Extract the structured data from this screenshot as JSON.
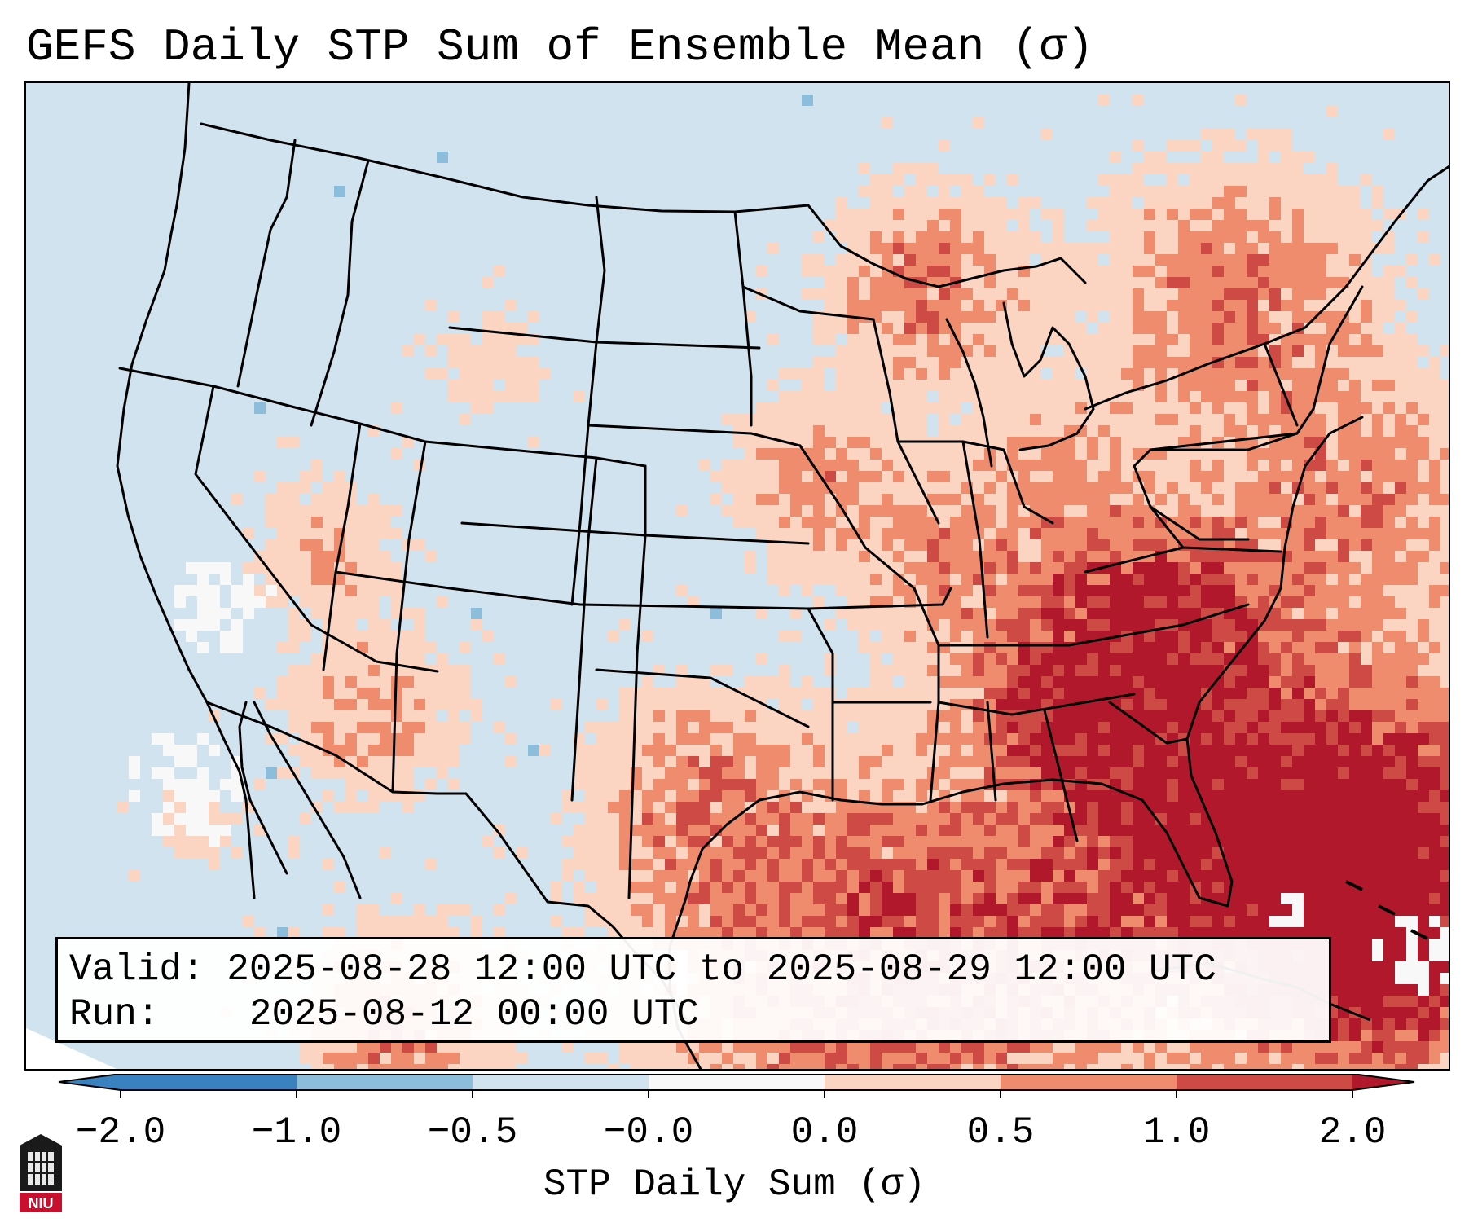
{
  "title": "GEFS Daily STP Sum of Ensemble Mean (σ)",
  "info": {
    "valid_label": "Valid:",
    "valid_value": "2025-08-28 12:00 UTC to 2025-08-29 12:00 UTC",
    "run_label": "Run:",
    "run_value": "2025-08-12 00:00 UTC"
  },
  "colorbar": {
    "label": "STP Daily Sum (σ)",
    "ticks": [
      "−2.0",
      "−1.0",
      "−0.5",
      "−0.0",
      "0.0",
      "0.5",
      "1.0",
      "2.0"
    ],
    "colors": [
      "#3a81bf",
      "#8cbedb",
      "#d0e3ee",
      "#f8f8f8",
      "#fbd5c2",
      "#ee8c6d",
      "#cd4a45",
      "#b2182b"
    ]
  },
  "logo": {
    "text": "NIU"
  },
  "map": {
    "projection": "lambert-conformal",
    "region": "CONUS",
    "background_class": "-0.5 to -0.0",
    "colors": {
      "land_bg": "#d0e3ee",
      "light": "#fbd5c2",
      "medium": "#ee8c6d",
      "strong": "#cd4a45",
      "extreme": "#b2182b",
      "white": "#f8f8f8",
      "blue": "#8cbedb"
    }
  }
}
